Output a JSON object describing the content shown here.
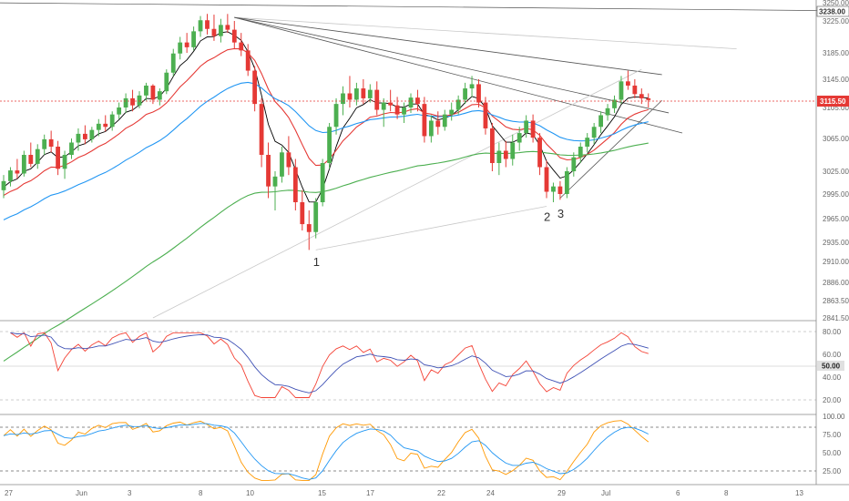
{
  "chart_data": {
    "type": "candlestick",
    "price_scale": {
      "ticks": [
        "3250.00",
        "3225.00",
        "3185.00",
        "3145.00",
        "3105.00",
        "3065.00",
        "3025.00",
        "2995.00",
        "2965.00",
        "2935.00",
        "2910.00",
        "2886.00",
        "2863.50",
        "2841.50"
      ],
      "current_price": "3115.50",
      "line_price_tag": "3238.00"
    },
    "time_axis": [
      "27",
      "Jun",
      "3",
      "8",
      "10",
      "15",
      "17",
      "22",
      "24",
      "29",
      "Jul",
      "6",
      "8",
      "13"
    ],
    "candles": [
      [
        3000,
        3020,
        2990,
        3012
      ],
      [
        3012,
        3030,
        3005,
        3026
      ],
      [
        3026,
        3040,
        3015,
        3022
      ],
      [
        3022,
        3050,
        3018,
        3045
      ],
      [
        3045,
        3060,
        3030,
        3034
      ],
      [
        3034,
        3058,
        3028,
        3052
      ],
      [
        3052,
        3070,
        3045,
        3064
      ],
      [
        3064,
        3075,
        3048,
        3055
      ],
      [
        3055,
        3062,
        3020,
        3028
      ],
      [
        3028,
        3050,
        3015,
        3045
      ],
      [
        3045,
        3065,
        3040,
        3060
      ],
      [
        3060,
        3078,
        3050,
        3071
      ],
      [
        3071,
        3082,
        3058,
        3064
      ],
      [
        3064,
        3080,
        3060,
        3076
      ],
      [
        3076,
        3090,
        3068,
        3084
      ],
      [
        3084,
        3095,
        3074,
        3080
      ],
      [
        3080,
        3100,
        3075,
        3096
      ],
      [
        3096,
        3112,
        3090,
        3105
      ],
      [
        3105,
        3125,
        3098,
        3118
      ],
      [
        3118,
        3130,
        3100,
        3108
      ],
      [
        3108,
        3128,
        3104,
        3122
      ],
      [
        3122,
        3140,
        3115,
        3136
      ],
      [
        3136,
        3138,
        3110,
        3116
      ],
      [
        3116,
        3132,
        3108,
        3128
      ],
      [
        3128,
        3160,
        3124,
        3155
      ],
      [
        3155,
        3190,
        3150,
        3184
      ],
      [
        3184,
        3205,
        3175,
        3198
      ],
      [
        3198,
        3210,
        3185,
        3192
      ],
      [
        3192,
        3218,
        3188,
        3212
      ],
      [
        3212,
        3232,
        3205,
        3226
      ],
      [
        3226,
        3235,
        3208,
        3215
      ],
      [
        3215,
        3234,
        3200,
        3206
      ],
      [
        3206,
        3228,
        3198,
        3220
      ],
      [
        3220,
        3235,
        3210,
        3214
      ],
      [
        3214,
        3225,
        3190,
        3198
      ],
      [
        3198,
        3210,
        3180,
        3188
      ],
      [
        3188,
        3196,
        3150,
        3158
      ],
      [
        3158,
        3165,
        3100,
        3110
      ],
      [
        3110,
        3118,
        3030,
        3045
      ],
      [
        3045,
        3060,
        2990,
        3005
      ],
      [
        3005,
        3025,
        2975,
        3018
      ],
      [
        3018,
        3055,
        3010,
        3048
      ],
      [
        3048,
        3068,
        3020,
        3030
      ],
      [
        3030,
        3040,
        2975,
        2985
      ],
      [
        2985,
        3000,
        2950,
        2958
      ],
      [
        2958,
        2975,
        2925,
        2948
      ],
      [
        2948,
        2990,
        2940,
        2985
      ],
      [
        2985,
        3040,
        2980,
        3035
      ],
      [
        3035,
        3085,
        3028,
        3080
      ],
      [
        3080,
        3118,
        3070,
        3110
      ],
      [
        3110,
        3135,
        3095,
        3125
      ],
      [
        3125,
        3150,
        3105,
        3116
      ],
      [
        3116,
        3140,
        3108,
        3132
      ],
      [
        3132,
        3145,
        3110,
        3118
      ],
      [
        3118,
        3138,
        3112,
        3130
      ],
      [
        3130,
        3142,
        3095,
        3102
      ],
      [
        3102,
        3118,
        3080,
        3112
      ],
      [
        3112,
        3130,
        3100,
        3108
      ],
      [
        3108,
        3120,
        3090,
        3096
      ],
      [
        3096,
        3112,
        3085,
        3105
      ],
      [
        3105,
        3125,
        3098,
        3119
      ],
      [
        3119,
        3130,
        3100,
        3110
      ],
      [
        3110,
        3120,
        3060,
        3068
      ],
      [
        3068,
        3095,
        3060,
        3088
      ],
      [
        3088,
        3100,
        3070,
        3080
      ],
      [
        3080,
        3102,
        3075,
        3096
      ],
      [
        3096,
        3112,
        3088,
        3102
      ],
      [
        3102,
        3122,
        3096,
        3116
      ],
      [
        3116,
        3140,
        3110,
        3132
      ],
      [
        3132,
        3150,
        3120,
        3138
      ],
      [
        3138,
        3145,
        3105,
        3112
      ],
      [
        3112,
        3120,
        3070,
        3078
      ],
      [
        3078,
        3085,
        3025,
        3035
      ],
      [
        3035,
        3060,
        3020,
        3050
      ],
      [
        3050,
        3062,
        3030,
        3040
      ],
      [
        3040,
        3070,
        3032,
        3060
      ],
      [
        3060,
        3080,
        3050,
        3072
      ],
      [
        3072,
        3095,
        3066,
        3088
      ],
      [
        3088,
        3096,
        3060,
        3066
      ],
      [
        3066,
        3072,
        3020,
        3030
      ],
      [
        3030,
        3038,
        2990,
        2998
      ],
      [
        2998,
        3010,
        2985,
        3005
      ],
      [
        3005,
        3012,
        2988,
        2995
      ],
      [
        2995,
        3030,
        2990,
        3025
      ],
      [
        3025,
        3048,
        3018,
        3042
      ],
      [
        3042,
        3060,
        3035,
        3055
      ],
      [
        3055,
        3072,
        3048,
        3066
      ],
      [
        3066,
        3085,
        3058,
        3080
      ],
      [
        3080,
        3100,
        3072,
        3095
      ],
      [
        3095,
        3110,
        3088,
        3104
      ],
      [
        3104,
        3122,
        3098,
        3116
      ],
      [
        3116,
        3150,
        3110,
        3142
      ],
      [
        3142,
        3158,
        3130,
        3136
      ],
      [
        3136,
        3145,
        3118,
        3124
      ],
      [
        3124,
        3132,
        3110,
        3118
      ],
      [
        3118,
        3125,
        3105,
        3115.5
      ]
    ],
    "moving_averages": [
      {
        "name": "",
        "color": "#000000",
        "period": 5
      },
      {
        "name": "",
        "color": "#e53935",
        "period": 12
      },
      {
        "name": "",
        "color": "#2196f3",
        "period": 30
      },
      {
        "name": "",
        "color": "#4caf50",
        "period": 80
      }
    ],
    "wave_labels": [
      "1",
      "2",
      "3"
    ],
    "rsi": {
      "ticks": [
        "80.00",
        "60.00",
        "50.00",
        "40.00",
        "20.00"
      ],
      "current": "50.00",
      "colors": {
        "fast": "#f44336",
        "slow": "#3f51b5"
      }
    },
    "stochastic": {
      "ticks": [
        "100.00",
        "75.00",
        "50.00",
        "25.00"
      ],
      "colors": {
        "k": "#ff9800",
        "d": "#2196f3"
      }
    },
    "colors": {
      "up": "#4caf50",
      "down": "#e53935",
      "price_line": "#e53935",
      "trendline": "#555555",
      "faint_line": "#c8c8c8"
    }
  }
}
